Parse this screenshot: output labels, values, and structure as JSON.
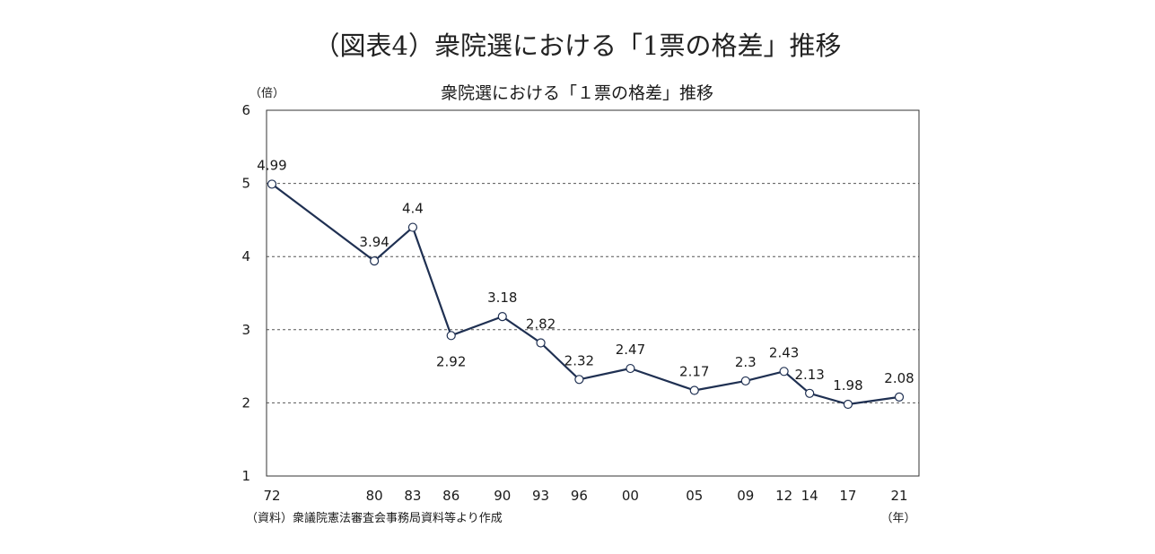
{
  "figure": {
    "title": "（図表4）衆院選における「1票の格差」推移"
  },
  "chart_data": {
    "type": "line",
    "title": "衆院選における「１票の格差」推移",
    "y_unit_label": "（倍）",
    "x_unit_label": "（年）",
    "source_note": "（資料）衆議院憲法審査会事務局資料等より作成",
    "x": [
      72,
      80,
      83,
      86,
      90,
      93,
      96,
      100,
      105,
      109,
      112,
      114,
      117,
      121
    ],
    "x_tick_labels": [
      "72",
      "80",
      "83",
      "86",
      "90",
      "93",
      "96",
      "00",
      "05",
      "09",
      "12",
      "14",
      "17",
      "21"
    ],
    "values": [
      4.99,
      3.94,
      4.4,
      2.92,
      3.18,
      2.82,
      2.32,
      2.47,
      2.17,
      2.3,
      2.43,
      2.13,
      1.98,
      2.08
    ],
    "value_labels": [
      "4.99",
      "3.94",
      "4.4",
      "2.92",
      "3.18",
      "2.82",
      "2.32",
      "2.47",
      "2.17",
      "2.3",
      "2.43",
      "2.13",
      "1.98",
      "2.08"
    ],
    "ylim": [
      1,
      6
    ],
    "y_ticks": [
      "1",
      "2",
      "3",
      "4",
      "5",
      "6"
    ],
    "grid": "horizontal dashed",
    "line_color": "#1f3052",
    "marker_fill": "#ffffff",
    "grid_color": "#555555"
  }
}
